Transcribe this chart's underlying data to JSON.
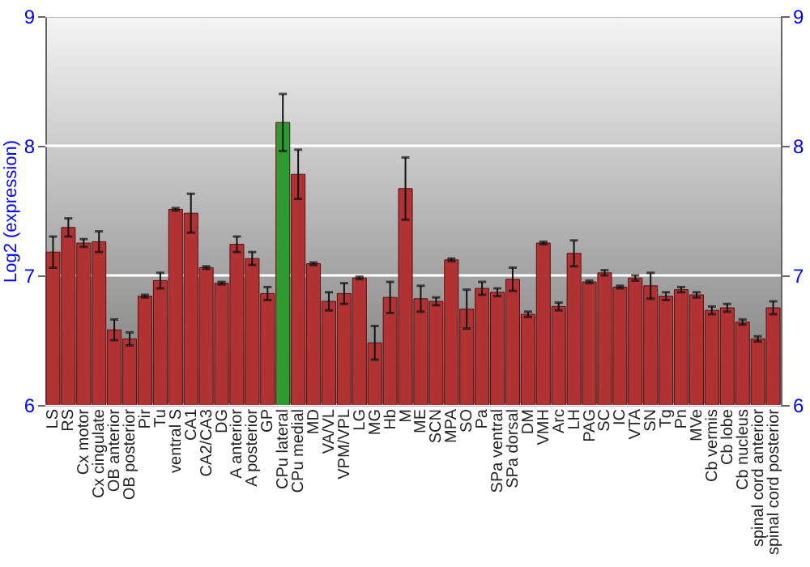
{
  "chart_data": {
    "type": "bar",
    "ylabel": "Log2 (expression)",
    "categories": [
      "LS",
      "RS",
      "Cx motor",
      "Cx cingulate",
      "OB anterior",
      "OB posterior",
      "Pir",
      "Tu",
      "ventral S",
      "CA1",
      "CA2/CA3",
      "DG",
      "A anterior",
      "A posterior",
      "GP",
      "CPu lateral",
      "CPu medial",
      "MD",
      "VA/VL",
      "VPM/VPL",
      "LG",
      "MG",
      "Hb",
      "M",
      "ME",
      "SCN",
      "MPA",
      "SO",
      "Pa",
      "SPa ventral",
      "SPa dorsal",
      "DM",
      "VMH",
      "Arc",
      "LH",
      "PAG",
      "SC",
      "IC",
      "VTA",
      "SN",
      "Tg",
      "Pn",
      "MVe",
      "Cb vermis",
      "Cb lobe",
      "Cb nucleus",
      "spinal cord anterior",
      "spinal cord posterior"
    ],
    "values": [
      7.18,
      7.37,
      7.25,
      7.26,
      6.58,
      6.51,
      6.84,
      6.96,
      7.51,
      7.48,
      7.06,
      6.94,
      7.24,
      7.13,
      6.86,
      8.18,
      7.78,
      7.09,
      6.8,
      6.86,
      6.98,
      6.48,
      6.83,
      7.67,
      6.82,
      6.8,
      7.12,
      6.74,
      6.9,
      6.87,
      6.97,
      6.7,
      7.25,
      6.76,
      7.17,
      6.95,
      7.02,
      6.91,
      6.98,
      6.92,
      6.84,
      6.89,
      6.85,
      6.73,
      6.75,
      6.64,
      6.51,
      6.75
    ],
    "errors": [
      0.12,
      0.07,
      0.03,
      0.08,
      0.08,
      0.05,
      0.01,
      0.06,
      0.01,
      0.15,
      0.01,
      0.01,
      0.06,
      0.05,
      0.05,
      0.22,
      0.19,
      0.01,
      0.07,
      0.08,
      0.01,
      0.13,
      0.12,
      0.24,
      0.1,
      0.03,
      0.01,
      0.15,
      0.05,
      0.03,
      0.09,
      0.02,
      0.01,
      0.03,
      0.1,
      0.01,
      0.02,
      0.01,
      0.02,
      0.1,
      0.03,
      0.02,
      0.02,
      0.03,
      0.03,
      0.02,
      0.02,
      0.05
    ],
    "colors": [
      "#b03232",
      "#b03232",
      "#b03232",
      "#b03232",
      "#b03232",
      "#b03232",
      "#b03232",
      "#b03232",
      "#b03232",
      "#b03232",
      "#b03232",
      "#b03232",
      "#b03232",
      "#b03232",
      "#b03232",
      "#2f9a2f",
      "#b03232",
      "#b03232",
      "#b03232",
      "#b03232",
      "#b03232",
      "#b03232",
      "#b03232",
      "#b03232",
      "#b03232",
      "#b03232",
      "#b03232",
      "#b03232",
      "#b03232",
      "#b03232",
      "#b03232",
      "#b03232",
      "#b03232",
      "#b03232",
      "#b03232",
      "#b03232",
      "#b03232",
      "#b03232",
      "#b03232",
      "#b03232",
      "#b03232",
      "#b03232",
      "#b03232",
      "#b03232",
      "#b03232",
      "#b03232",
      "#b03232",
      "#b03232"
    ],
    "ylim": [
      6,
      9
    ],
    "yticks": [
      6,
      7,
      8,
      9
    ],
    "y2lim": [
      6,
      9
    ],
    "y2ticks": [
      6,
      7,
      8,
      9
    ],
    "grid": "y"
  }
}
